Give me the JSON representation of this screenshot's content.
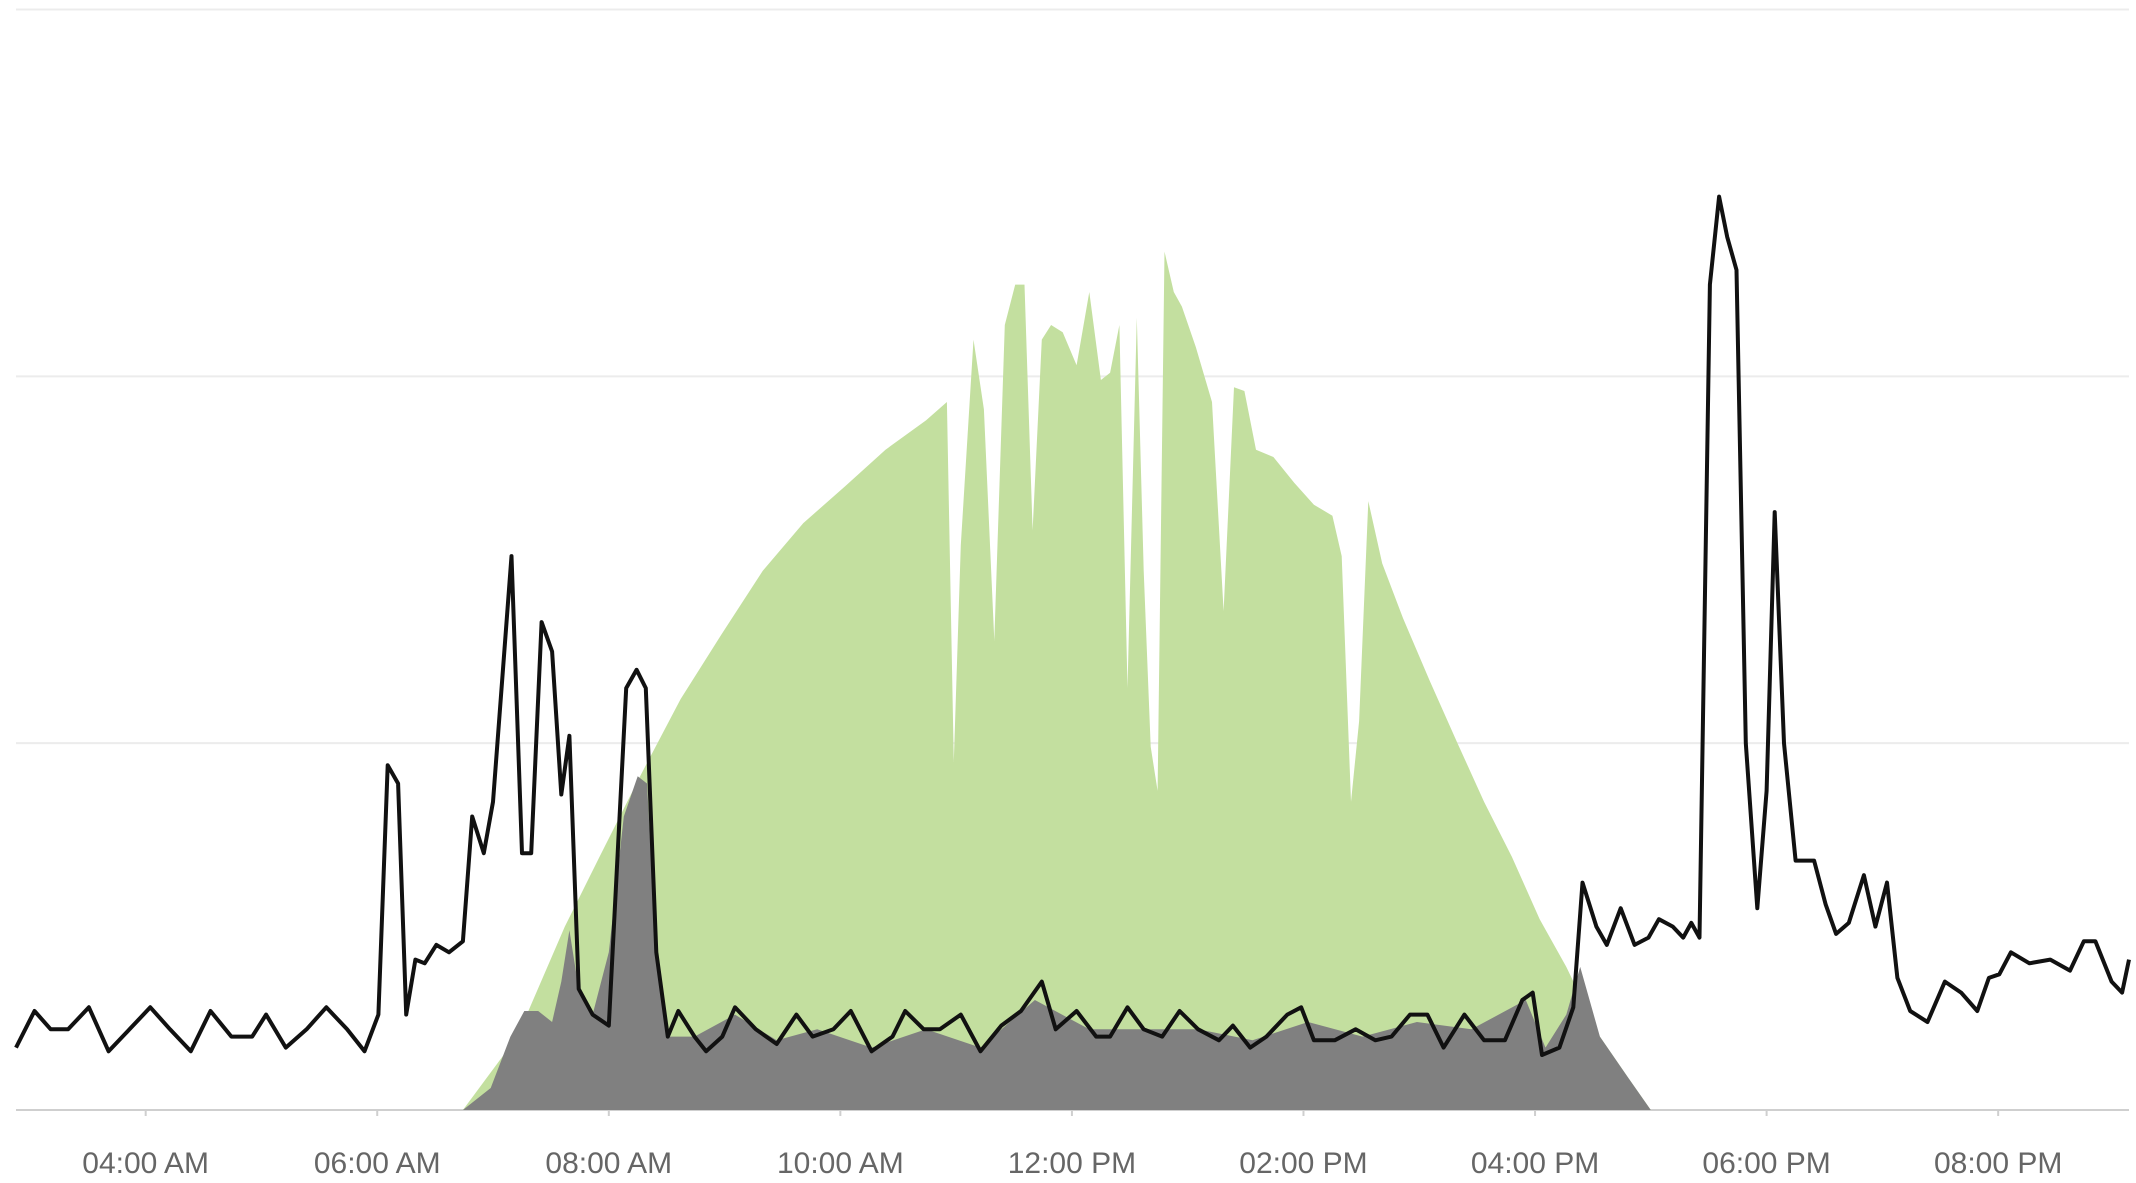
{
  "chart_data": {
    "type": "area",
    "xlim": [
      2.88,
      21.13
    ],
    "ylim": [
      0,
      3
    ],
    "yticks": [
      0,
      1,
      2,
      3
    ],
    "grid": true,
    "xticks": [
      {
        "value": 4,
        "label": "04:00 AM"
      },
      {
        "value": 6,
        "label": "06:00 AM"
      },
      {
        "value": 8,
        "label": "08:00 AM"
      },
      {
        "value": 10,
        "label": "10:00 AM"
      },
      {
        "value": 12,
        "label": "12:00 PM"
      },
      {
        "value": 14,
        "label": "02:00 PM"
      },
      {
        "value": 16,
        "label": "04:00 PM"
      },
      {
        "value": 18,
        "label": "06:00 PM"
      },
      {
        "value": 20,
        "label": "08:00 PM"
      }
    ],
    "series": [
      {
        "color": "#c3df9f",
        "fill": true,
        "x": [
          6.74,
          7.21,
          7.62,
          7.92,
          8.27,
          8.62,
          8.98,
          9.33,
          9.68,
          10.04,
          10.39,
          10.74,
          10.92,
          10.98,
          11.04,
          11.15,
          11.24,
          11.33,
          11.42,
          11.51,
          11.59,
          11.66,
          11.74,
          11.82,
          11.92,
          12.04,
          12.15,
          12.25,
          12.33,
          12.41,
          12.48,
          12.56,
          12.62,
          12.68,
          12.74,
          12.8,
          12.88,
          12.95,
          13.07,
          13.21,
          13.31,
          13.4,
          13.49,
          13.59,
          13.74,
          13.92,
          14.09,
          14.25,
          14.33,
          14.41,
          14.48,
          14.56,
          14.68,
          14.86,
          15.09,
          15.33,
          15.56,
          15.8,
          16.04,
          16.27,
          16.56,
          16.8,
          17.0
        ],
        "values": [
          0,
          0.2,
          0.5,
          0.69,
          0.91,
          1.12,
          1.3,
          1.47,
          1.6,
          1.7,
          1.8,
          1.88,
          1.93,
          0.95,
          1.54,
          2.1,
          1.91,
          1.28,
          2.14,
          2.25,
          2.25,
          1.58,
          2.1,
          2.14,
          2.12,
          2.03,
          2.23,
          1.99,
          2.01,
          2.14,
          1.15,
          2.16,
          1.47,
          0.99,
          0.87,
          2.34,
          2.23,
          2.19,
          2.08,
          1.93,
          1.36,
          1.97,
          1.96,
          1.8,
          1.78,
          1.71,
          1.65,
          1.62,
          1.51,
          0.84,
          1.06,
          1.66,
          1.49,
          1.34,
          1.17,
          1.0,
          0.84,
          0.69,
          0.52,
          0.39,
          0.2,
          0.09,
          0
        ]
      },
      {
        "color": "#808080",
        "fill": true,
        "x": [
          6.74,
          6.98,
          7.15,
          7.27,
          7.39,
          7.51,
          7.59,
          7.66,
          7.74,
          7.86,
          8.0,
          8.13,
          8.25,
          8.33,
          8.41,
          8.51,
          8.74,
          9.09,
          9.45,
          9.8,
          10.27,
          10.74,
          11.21,
          11.68,
          12.15,
          12.62,
          13.09,
          13.56,
          14.04,
          14.51,
          14.98,
          15.45,
          15.92,
          16.09,
          16.27,
          16.39,
          16.56,
          16.8,
          17.0
        ],
        "values": [
          0,
          0.06,
          0.2,
          0.27,
          0.27,
          0.24,
          0.35,
          0.49,
          0.33,
          0.26,
          0.43,
          0.8,
          0.91,
          0.89,
          0.43,
          0.2,
          0.2,
          0.26,
          0.19,
          0.22,
          0.17,
          0.22,
          0.17,
          0.3,
          0.22,
          0.22,
          0.22,
          0.19,
          0.24,
          0.2,
          0.24,
          0.22,
          0.3,
          0.17,
          0.26,
          0.39,
          0.2,
          0.09,
          0
        ]
      },
      {
        "color": "#111111",
        "fill": false,
        "x": [
          2.88,
          3.04,
          3.18,
          3.33,
          3.51,
          3.68,
          3.86,
          4.04,
          4.21,
          4.39,
          4.56,
          4.74,
          4.92,
          5.04,
          5.21,
          5.39,
          5.56,
          5.74,
          5.89,
          6.01,
          6.09,
          6.18,
          6.25,
          6.33,
          6.41,
          6.51,
          6.62,
          6.74,
          6.82,
          6.92,
          7.0,
          7.16,
          7.25,
          7.33,
          7.42,
          7.51,
          7.59,
          7.66,
          7.74,
          7.86,
          8.0,
          8.15,
          8.24,
          8.32,
          8.41,
          8.51,
          8.6,
          8.74,
          8.84,
          8.98,
          9.09,
          9.27,
          9.45,
          9.62,
          9.76,
          9.94,
          10.09,
          10.27,
          10.45,
          10.56,
          10.72,
          10.86,
          11.04,
          11.21,
          11.39,
          11.56,
          11.74,
          11.86,
          12.04,
          12.21,
          12.33,
          12.48,
          12.62,
          12.78,
          12.93,
          13.09,
          13.27,
          13.39,
          13.54,
          13.68,
          13.86,
          13.98,
          14.09,
          14.27,
          14.45,
          14.62,
          14.76,
          14.92,
          15.07,
          15.21,
          15.39,
          15.56,
          15.74,
          15.89,
          15.98,
          16.06,
          16.21,
          16.33,
          16.41,
          16.53,
          16.62,
          16.74,
          16.86,
          16.98,
          17.07,
          17.19,
          17.28,
          17.35,
          17.42,
          17.51,
          17.59,
          17.66,
          17.74,
          17.82,
          17.92,
          18.0,
          18.07,
          18.15,
          18.25,
          18.41,
          18.51,
          18.6,
          18.71,
          18.84,
          18.94,
          19.04,
          19.13,
          19.24,
          19.39,
          19.54,
          19.68,
          19.82,
          19.92,
          20.01,
          20.11,
          20.27,
          20.45,
          20.62,
          20.74,
          20.84,
          20.98,
          21.07,
          21.13
        ],
        "values": [
          0.17,
          0.27,
          0.22,
          0.22,
          0.28,
          0.16,
          0.22,
          0.28,
          0.22,
          0.16,
          0.27,
          0.2,
          0.2,
          0.26,
          0.17,
          0.22,
          0.28,
          0.22,
          0.16,
          0.26,
          0.94,
          0.89,
          0.26,
          0.41,
          0.4,
          0.45,
          0.43,
          0.46,
          0.8,
          0.7,
          0.84,
          1.51,
          0.7,
          0.7,
          1.33,
          1.25,
          0.86,
          1.02,
          0.33,
          0.26,
          0.23,
          1.15,
          1.2,
          1.15,
          0.43,
          0.2,
          0.27,
          0.2,
          0.16,
          0.2,
          0.28,
          0.22,
          0.18,
          0.26,
          0.2,
          0.22,
          0.27,
          0.16,
          0.2,
          0.27,
          0.22,
          0.22,
          0.26,
          0.16,
          0.23,
          0.27,
          0.35,
          0.22,
          0.27,
          0.2,
          0.2,
          0.28,
          0.22,
          0.2,
          0.27,
          0.22,
          0.19,
          0.23,
          0.17,
          0.2,
          0.26,
          0.28,
          0.19,
          0.19,
          0.22,
          0.19,
          0.2,
          0.26,
          0.26,
          0.17,
          0.26,
          0.19,
          0.19,
          0.3,
          0.32,
          0.15,
          0.17,
          0.28,
          0.62,
          0.5,
          0.45,
          0.55,
          0.45,
          0.47,
          0.52,
          0.5,
          0.47,
          0.51,
          0.47,
          2.25,
          2.49,
          2.38,
          2.29,
          1.0,
          0.55,
          0.87,
          1.63,
          1.0,
          0.68,
          0.68,
          0.56,
          0.48,
          0.51,
          0.64,
          0.5,
          0.62,
          0.36,
          0.27,
          0.24,
          0.35,
          0.32,
          0.27,
          0.36,
          0.37,
          0.43,
          0.4,
          0.41,
          0.38,
          0.46,
          0.46,
          0.35,
          0.32,
          0.41
        ]
      }
    ]
  }
}
